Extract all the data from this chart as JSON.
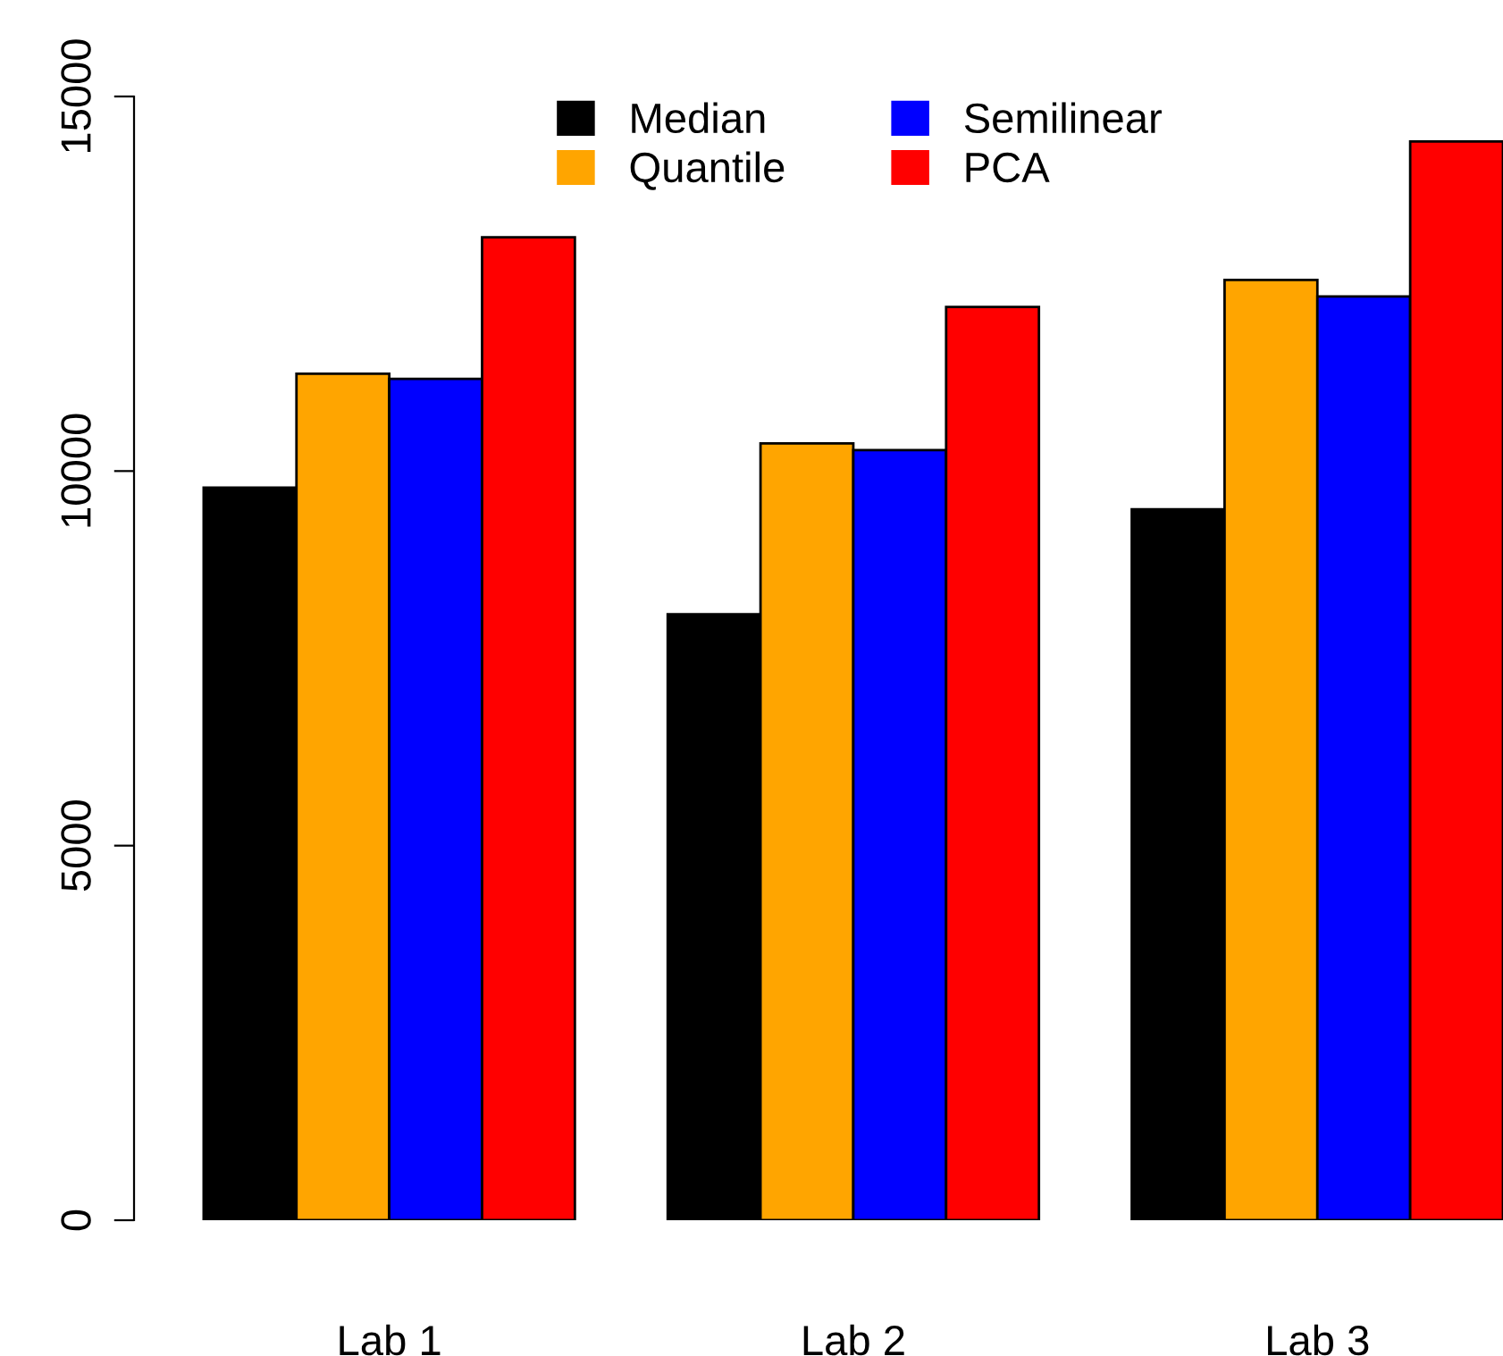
{
  "chart_data": {
    "type": "bar",
    "categories": [
      "Lab 1",
      "Lab 2",
      "Lab 3"
    ],
    "series": [
      {
        "name": "Median",
        "color": "#000000",
        "values": [
          9780,
          8090,
          9490
        ]
      },
      {
        "name": "Quantile",
        "color": "#ffa500",
        "values": [
          11300,
          10370,
          12550
        ]
      },
      {
        "name": "Semilinear",
        "color": "#0000ff",
        "values": [
          11230,
          10280,
          12330
        ]
      },
      {
        "name": "PCA",
        "color": "#ff0000",
        "values": [
          13120,
          12190,
          14400
        ]
      }
    ],
    "ylim": [
      0,
      15000
    ],
    "yticks": [
      0,
      5000,
      10000,
      15000
    ],
    "grid": false,
    "legend": "top"
  }
}
